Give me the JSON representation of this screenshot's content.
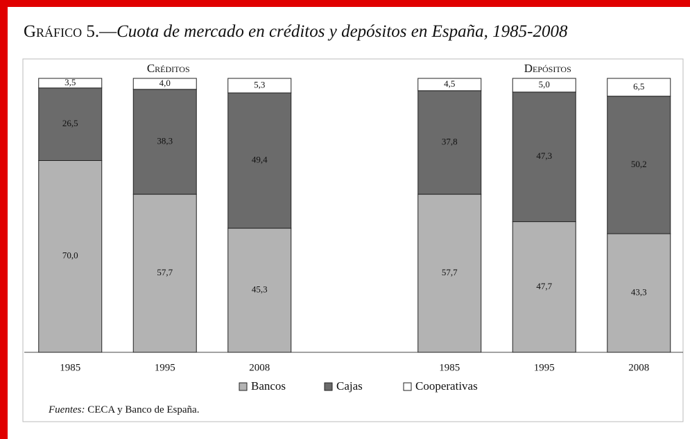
{
  "title": {
    "label": "Gráfico 5.—",
    "text": "Cuota de mercado en créditos y depósitos en España, 1985-2008"
  },
  "source": {
    "label": "Fuentes:",
    "text": "CECA y Banco de España."
  },
  "chart_data": [
    {
      "type": "bar",
      "stacked": true,
      "title": "Créditos",
      "categories": [
        "1985",
        "1995",
        "2008"
      ],
      "ylim": [
        0,
        100
      ],
      "series": [
        {
          "name": "Bancos",
          "color": "#b3b3b3",
          "values": [
            70.0,
            57.7,
            45.3
          ],
          "value_labels": [
            "70,0",
            "57,7",
            "45,3"
          ]
        },
        {
          "name": "Cajas",
          "color": "#6b6b6b",
          "values": [
            26.5,
            38.3,
            49.4
          ],
          "value_labels": [
            "26,5",
            "38,3",
            "49,4"
          ]
        },
        {
          "name": "Cooperativas",
          "color": "#ffffff",
          "values": [
            3.5,
            4.0,
            5.3
          ],
          "value_labels": [
            "3,5",
            "4,0",
            "5,3"
          ]
        }
      ]
    },
    {
      "type": "bar",
      "stacked": true,
      "title": "Depósitos",
      "categories": [
        "1985",
        "1995",
        "2008"
      ],
      "ylim": [
        0,
        100
      ],
      "series": [
        {
          "name": "Bancos",
          "color": "#b3b3b3",
          "values": [
            57.7,
            47.7,
            43.3
          ],
          "value_labels": [
            "57,7",
            "47,7",
            "43,3"
          ]
        },
        {
          "name": "Cajas",
          "color": "#6b6b6b",
          "values": [
            37.8,
            47.3,
            50.2
          ],
          "value_labels": [
            "37,8",
            "47,3",
            "50,2"
          ]
        },
        {
          "name": "Cooperativas",
          "color": "#ffffff",
          "values": [
            4.5,
            5.0,
            6.5
          ],
          "value_labels": [
            "4,5",
            "5,0",
            "6,5"
          ]
        }
      ]
    }
  ]
}
